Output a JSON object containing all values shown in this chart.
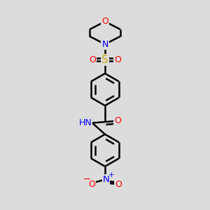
{
  "bg_color": "#dcdcdc",
  "bond_color": "#000000",
  "bond_width": 1.8,
  "atom_colors": {
    "O": "#ff0000",
    "N": "#0000ff",
    "S": "#ccaa00",
    "C": "#000000",
    "H": "#555555"
  },
  "font_size": 8.5,
  "fig_size": [
    3.0,
    3.0
  ],
  "dpi": 100,
  "xlim": [
    0,
    10
  ],
  "ylim": [
    0,
    10
  ]
}
